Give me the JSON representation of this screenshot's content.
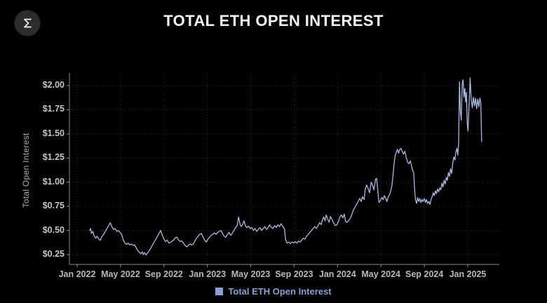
{
  "app": {
    "logo_glyph": "sigma-mark"
  },
  "header": {
    "title": "TOTAL ETH OPEN INTEREST"
  },
  "chart_data": {
    "type": "line",
    "title": "TOTAL ETH OPEN INTEREST",
    "xlabel": "",
    "ylabel": "Total Open Interest",
    "legend_position": "bottom-center",
    "grid": "dotted",
    "background": "#000000",
    "line_color": "#a6bbe3",
    "axis_color": "#8c8c8c",
    "grid_color": "#2f2f2f",
    "ylim": [
      0.155,
      2.12
    ],
    "xlim_months": [
      -0.72,
      38.9
    ],
    "x_unit": "months since Jan 2022",
    "x_ticks": [
      {
        "label": "Jan 2022",
        "month": 0
      },
      {
        "label": "May 2022",
        "month": 4
      },
      {
        "label": "Sep 2022",
        "month": 8
      },
      {
        "label": "Jan 2023",
        "month": 12
      },
      {
        "label": "May 2023",
        "month": 16
      },
      {
        "label": "Sep 2023",
        "month": 20
      },
      {
        "label": "Jan 2024",
        "month": 24
      },
      {
        "label": "May 2024",
        "month": 28
      },
      {
        "label": "Sep 2024",
        "month": 32
      },
      {
        "label": "Jan 2025",
        "month": 36
      }
    ],
    "y_ticks": [
      {
        "label": "$2.00",
        "value": 2.0
      },
      {
        "label": "$1.75",
        "value": 1.75
      },
      {
        "label": "$1.50",
        "value": 1.5
      },
      {
        "label": "$1.25",
        "value": 1.25
      },
      {
        "label": "$1.00",
        "value": 1.0
      },
      {
        "label": "$0.75",
        "value": 0.75
      },
      {
        "label": "$0.50",
        "value": 0.5
      },
      {
        "label": "$0.25",
        "value": 0.25
      }
    ],
    "legend": [
      {
        "label": "Total ETH Open Interest",
        "color": "#84a2d8"
      }
    ],
    "series": [
      {
        "name": "Total ETH Open Interest",
        "points": [
          [
            1.16,
            0.5
          ],
          [
            1.25,
            0.52
          ],
          [
            1.32,
            0.47
          ],
          [
            1.45,
            0.49
          ],
          [
            1.58,
            0.44
          ],
          [
            1.72,
            0.42
          ],
          [
            1.85,
            0.44
          ],
          [
            2.0,
            0.41
          ],
          [
            2.15,
            0.4
          ],
          [
            2.3,
            0.44
          ],
          [
            2.45,
            0.46
          ],
          [
            2.6,
            0.49
          ],
          [
            2.75,
            0.52
          ],
          [
            2.9,
            0.55
          ],
          [
            3.05,
            0.58
          ],
          [
            3.2,
            0.54
          ],
          [
            3.35,
            0.51
          ],
          [
            3.5,
            0.52
          ],
          [
            3.65,
            0.49
          ],
          [
            3.8,
            0.5
          ],
          [
            3.95,
            0.48
          ],
          [
            4.1,
            0.46
          ],
          [
            4.25,
            0.4
          ],
          [
            4.4,
            0.37
          ],
          [
            4.55,
            0.355
          ],
          [
            4.7,
            0.37
          ],
          [
            4.85,
            0.35
          ],
          [
            5.0,
            0.36
          ],
          [
            5.15,
            0.345
          ],
          [
            5.3,
            0.35
          ],
          [
            5.45,
            0.32
          ],
          [
            5.6,
            0.29
          ],
          [
            5.75,
            0.27
          ],
          [
            5.9,
            0.26
          ],
          [
            6.0,
            0.28
          ],
          [
            6.1,
            0.25
          ],
          [
            6.22,
            0.27
          ],
          [
            6.35,
            0.245
          ],
          [
            6.5,
            0.27
          ],
          [
            6.65,
            0.29
          ],
          [
            6.8,
            0.32
          ],
          [
            6.95,
            0.35
          ],
          [
            7.1,
            0.38
          ],
          [
            7.25,
            0.41
          ],
          [
            7.4,
            0.44
          ],
          [
            7.55,
            0.47
          ],
          [
            7.7,
            0.5
          ],
          [
            7.85,
            0.45
          ],
          [
            8.0,
            0.41
          ],
          [
            8.15,
            0.385
          ],
          [
            8.3,
            0.4
          ],
          [
            8.45,
            0.37
          ],
          [
            8.6,
            0.375
          ],
          [
            8.75,
            0.39
          ],
          [
            8.9,
            0.4
          ],
          [
            9.05,
            0.425
          ],
          [
            9.2,
            0.43
          ],
          [
            9.35,
            0.4
          ],
          [
            9.5,
            0.385
          ],
          [
            9.65,
            0.39
          ],
          [
            9.8,
            0.37
          ],
          [
            9.95,
            0.345
          ],
          [
            10.1,
            0.33
          ],
          [
            10.25,
            0.345
          ],
          [
            10.4,
            0.36
          ],
          [
            10.55,
            0.35
          ],
          [
            10.7,
            0.36
          ],
          [
            10.85,
            0.39
          ],
          [
            11.0,
            0.42
          ],
          [
            11.15,
            0.44
          ],
          [
            11.3,
            0.46
          ],
          [
            11.45,
            0.47
          ],
          [
            11.6,
            0.43
          ],
          [
            11.75,
            0.4
          ],
          [
            11.9,
            0.38
          ],
          [
            12.05,
            0.41
          ],
          [
            12.2,
            0.43
          ],
          [
            12.35,
            0.45
          ],
          [
            12.5,
            0.46
          ],
          [
            12.65,
            0.475
          ],
          [
            12.8,
            0.46
          ],
          [
            12.95,
            0.48
          ],
          [
            13.1,
            0.49
          ],
          [
            13.25,
            0.5
          ],
          [
            13.4,
            0.47
          ],
          [
            13.55,
            0.44
          ],
          [
            13.7,
            0.43
          ],
          [
            13.85,
            0.46
          ],
          [
            14.0,
            0.48
          ],
          [
            14.15,
            0.45
          ],
          [
            14.3,
            0.47
          ],
          [
            14.45,
            0.5
          ],
          [
            14.6,
            0.53
          ],
          [
            14.75,
            0.55
          ],
          [
            14.88,
            0.64
          ],
          [
            15.0,
            0.57
          ],
          [
            15.12,
            0.54
          ],
          [
            15.25,
            0.56
          ],
          [
            15.38,
            0.6
          ],
          [
            15.5,
            0.55
          ],
          [
            15.65,
            0.53
          ],
          [
            15.8,
            0.545
          ],
          [
            15.95,
            0.52
          ],
          [
            16.1,
            0.53
          ],
          [
            16.25,
            0.5
          ],
          [
            16.4,
            0.52
          ],
          [
            16.55,
            0.49
          ],
          [
            16.7,
            0.51
          ],
          [
            16.85,
            0.53
          ],
          [
            17.0,
            0.5
          ],
          [
            17.15,
            0.52
          ],
          [
            17.3,
            0.54
          ],
          [
            17.45,
            0.51
          ],
          [
            17.6,
            0.53
          ],
          [
            17.75,
            0.56
          ],
          [
            17.9,
            0.53
          ],
          [
            18.05,
            0.52
          ],
          [
            18.2,
            0.55
          ],
          [
            18.35,
            0.53
          ],
          [
            18.5,
            0.56
          ],
          [
            18.65,
            0.54
          ],
          [
            18.8,
            0.57
          ],
          [
            18.95,
            0.54
          ],
          [
            19.1,
            0.52
          ],
          [
            19.22,
            0.4
          ],
          [
            19.35,
            0.37
          ],
          [
            19.5,
            0.38
          ],
          [
            19.65,
            0.365
          ],
          [
            19.8,
            0.38
          ],
          [
            19.95,
            0.37
          ],
          [
            20.1,
            0.385
          ],
          [
            20.25,
            0.37
          ],
          [
            20.4,
            0.39
          ],
          [
            20.55,
            0.38
          ],
          [
            20.7,
            0.4
          ],
          [
            20.85,
            0.42
          ],
          [
            21.0,
            0.41
          ],
          [
            21.15,
            0.44
          ],
          [
            21.3,
            0.46
          ],
          [
            21.45,
            0.48
          ],
          [
            21.6,
            0.5
          ],
          [
            21.75,
            0.52
          ],
          [
            21.9,
            0.54
          ],
          [
            22.05,
            0.52
          ],
          [
            22.2,
            0.55
          ],
          [
            22.35,
            0.58
          ],
          [
            22.5,
            0.56
          ],
          [
            22.6,
            0.61
          ],
          [
            22.72,
            0.64
          ],
          [
            22.85,
            0.6
          ],
          [
            22.95,
            0.66
          ],
          [
            23.08,
            0.62
          ],
          [
            23.22,
            0.585
          ],
          [
            23.35,
            0.645
          ],
          [
            23.5,
            0.61
          ],
          [
            23.65,
            0.575
          ],
          [
            23.8,
            0.55
          ],
          [
            23.95,
            0.56
          ],
          [
            24.1,
            0.6
          ],
          [
            24.22,
            0.64
          ],
          [
            24.35,
            0.66
          ],
          [
            24.5,
            0.63
          ],
          [
            24.62,
            0.67
          ],
          [
            24.75,
            0.59
          ],
          [
            24.88,
            0.585
          ],
          [
            25.0,
            0.6
          ],
          [
            25.15,
            0.62
          ],
          [
            25.3,
            0.66
          ],
          [
            25.45,
            0.71
          ],
          [
            25.6,
            0.74
          ],
          [
            25.75,
            0.77
          ],
          [
            25.9,
            0.8
          ],
          [
            26.05,
            0.83
          ],
          [
            26.18,
            0.8
          ],
          [
            26.3,
            0.85
          ],
          [
            26.45,
            0.82
          ],
          [
            26.55,
            0.93
          ],
          [
            26.68,
            0.97
          ],
          [
            26.8,
            0.94
          ],
          [
            26.95,
            0.89
          ],
          [
            27.1,
            1.0
          ],
          [
            27.22,
            0.97
          ],
          [
            27.35,
            0.92
          ],
          [
            27.5,
            1.03
          ],
          [
            27.6,
            1.04
          ],
          [
            27.72,
            0.9
          ],
          [
            27.82,
            0.79
          ],
          [
            27.95,
            0.81
          ],
          [
            28.08,
            0.84
          ],
          [
            28.2,
            0.82
          ],
          [
            28.32,
            0.86
          ],
          [
            28.45,
            0.83
          ],
          [
            28.55,
            0.8
          ],
          [
            28.68,
            0.85
          ],
          [
            28.8,
            0.87
          ],
          [
            28.92,
            0.92
          ],
          [
            29.02,
            0.97
          ],
          [
            29.12,
            1.08
          ],
          [
            29.22,
            1.2
          ],
          [
            29.32,
            1.28
          ],
          [
            29.42,
            1.31
          ],
          [
            29.52,
            1.34
          ],
          [
            29.62,
            1.3
          ],
          [
            29.72,
            1.335
          ],
          [
            29.85,
            1.35
          ],
          [
            29.95,
            1.32
          ],
          [
            30.08,
            1.29
          ],
          [
            30.2,
            1.32
          ],
          [
            30.32,
            1.26
          ],
          [
            30.45,
            1.21
          ],
          [
            30.58,
            1.19
          ],
          [
            30.7,
            1.22
          ],
          [
            30.82,
            1.17
          ],
          [
            30.92,
            1.12
          ],
          [
            31.02,
            1.1
          ],
          [
            31.1,
            0.93
          ],
          [
            31.18,
            0.82
          ],
          [
            31.28,
            0.78
          ],
          [
            31.38,
            0.84
          ],
          [
            31.48,
            0.8
          ],
          [
            31.58,
            0.83
          ],
          [
            31.68,
            0.79
          ],
          [
            31.78,
            0.82
          ],
          [
            31.88,
            0.8
          ],
          [
            32.0,
            0.83
          ],
          [
            32.1,
            0.79
          ],
          [
            32.2,
            0.82
          ],
          [
            32.3,
            0.78
          ],
          [
            32.42,
            0.8
          ],
          [
            32.52,
            0.77
          ],
          [
            32.62,
            0.82
          ],
          [
            32.72,
            0.85
          ],
          [
            32.82,
            0.89
          ],
          [
            32.92,
            0.86
          ],
          [
            33.02,
            0.91
          ],
          [
            33.12,
            0.88
          ],
          [
            33.22,
            0.93
          ],
          [
            33.32,
            0.9
          ],
          [
            33.42,
            0.94
          ],
          [
            33.52,
            0.92
          ],
          [
            33.62,
            0.99
          ],
          [
            33.72,
            0.95
          ],
          [
            33.82,
            1.02
          ],
          [
            33.92,
            0.98
          ],
          [
            34.02,
            1.05
          ],
          [
            34.12,
            1.02
          ],
          [
            34.22,
            1.1
          ],
          [
            34.32,
            1.06
          ],
          [
            34.42,
            1.14
          ],
          [
            34.52,
            1.09
          ],
          [
            34.62,
            1.2
          ],
          [
            34.72,
            1.26
          ],
          [
            34.82,
            1.23
          ],
          [
            34.9,
            1.31
          ],
          [
            35.0,
            1.35
          ],
          [
            35.08,
            1.28
          ],
          [
            35.16,
            1.4
          ],
          [
            35.24,
            2.04
          ],
          [
            35.32,
            1.74
          ],
          [
            35.4,
            1.64
          ],
          [
            35.49,
            2.02
          ],
          [
            35.57,
            2.06
          ],
          [
            35.65,
            1.88
          ],
          [
            35.73,
            1.97
          ],
          [
            35.81,
            1.83
          ],
          [
            35.88,
            1.93
          ],
          [
            35.95,
            1.62
          ],
          [
            36.02,
            1.53
          ],
          [
            36.12,
            1.78
          ],
          [
            36.22,
            2.08
          ],
          [
            36.32,
            1.86
          ],
          [
            36.42,
            1.77
          ],
          [
            36.52,
            1.88
          ],
          [
            36.62,
            1.79
          ],
          [
            36.72,
            1.87
          ],
          [
            36.82,
            1.76
          ],
          [
            36.92,
            1.86
          ],
          [
            37.02,
            1.78
          ],
          [
            37.12,
            1.87
          ],
          [
            37.2,
            1.82
          ],
          [
            37.28,
            1.42
          ]
        ]
      }
    ]
  }
}
